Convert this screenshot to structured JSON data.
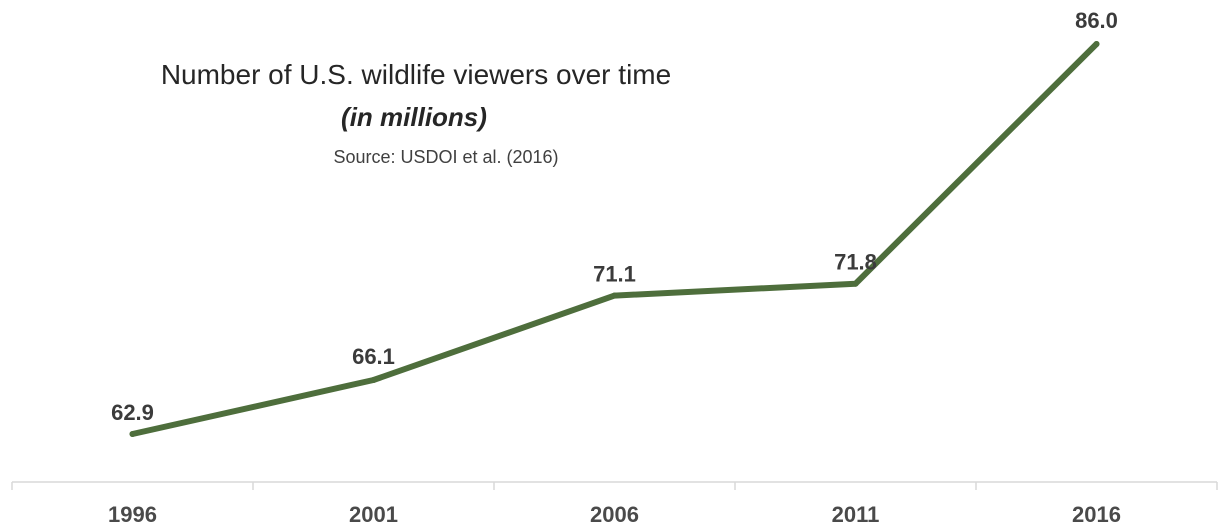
{
  "chart_data": {
    "type": "line",
    "title": "Number of U.S. wildlife viewers over time",
    "subtitle": "(in millions)",
    "source": "Source: USDOI et al. (2016)",
    "categories": [
      "1996",
      "2001",
      "2006",
      "2011",
      "2016"
    ],
    "series": [
      {
        "values": [
          62.9,
          66.1,
          71.1,
          71.8,
          86.0
        ],
        "labels": [
          "62.9",
          "66.1",
          "71.1",
          "71.8",
          "86.0"
        ],
        "color": "#4e6e3c"
      }
    ],
    "ylim": [
      58,
      87
    ],
    "grid": false,
    "legend": "none",
    "xlabel": "",
    "ylabel": ""
  }
}
